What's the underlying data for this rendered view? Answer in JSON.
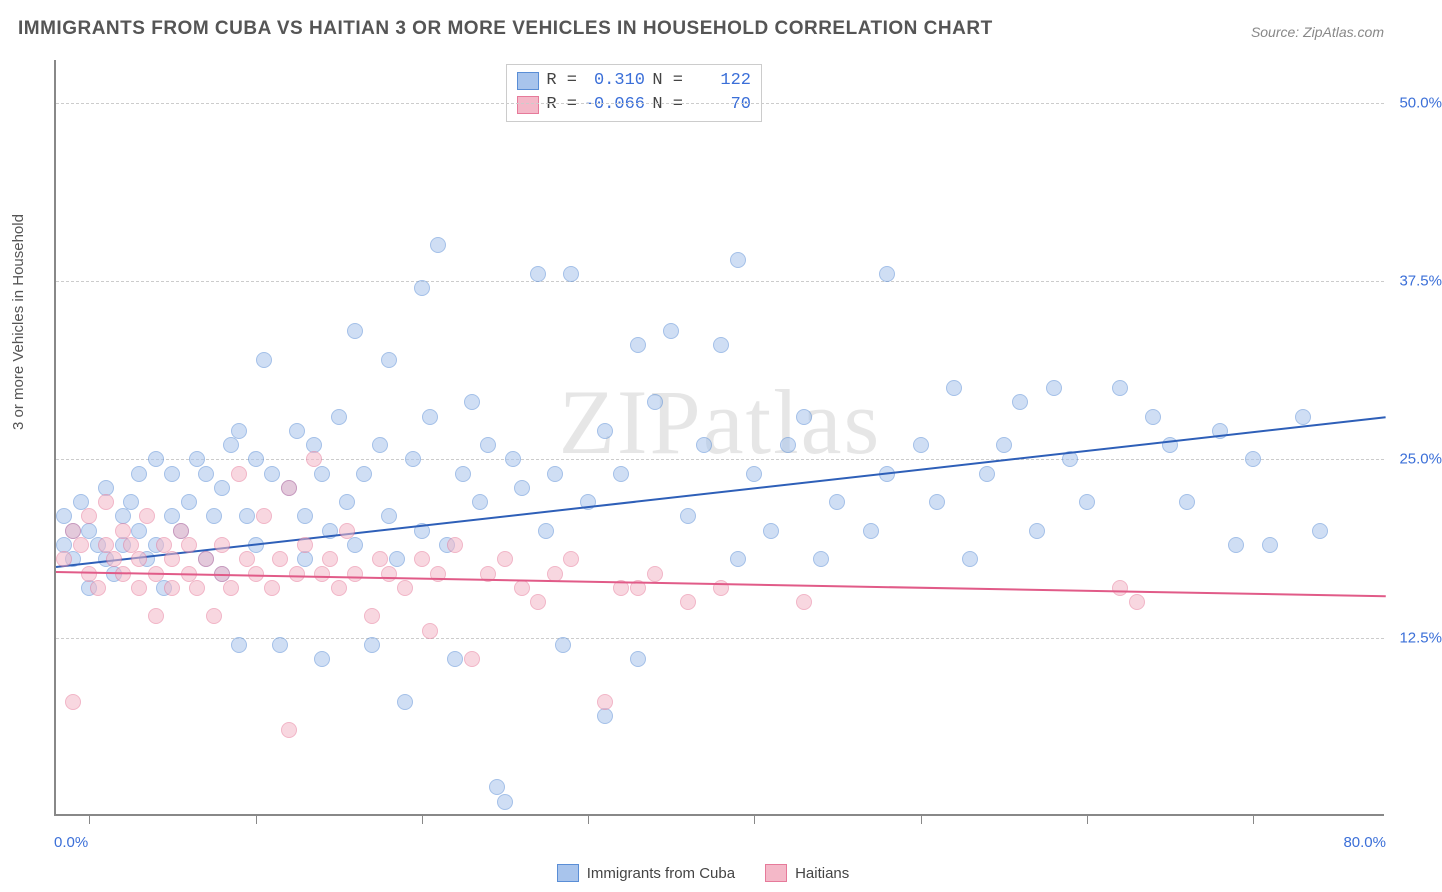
{
  "title": "IMMIGRANTS FROM CUBA VS HAITIAN 3 OR MORE VEHICLES IN HOUSEHOLD CORRELATION CHART",
  "source": "Source: ZipAtlas.com",
  "watermark": "ZIPatlas",
  "chart": {
    "type": "scatter",
    "xlim": [
      0,
      80
    ],
    "ylim": [
      0,
      53
    ],
    "xlabel_min": "0.0%",
    "xlabel_max": "80.0%",
    "ylabel": "3 or more Vehicles in Household",
    "yticks": [
      {
        "v": 12.5,
        "label": "12.5%"
      },
      {
        "v": 25.0,
        "label": "25.0%"
      },
      {
        "v": 37.5,
        "label": "37.5%"
      },
      {
        "v": 50.0,
        "label": "50.0%"
      }
    ],
    "xtick_positions": [
      2,
      12,
      22,
      32,
      42,
      52,
      62,
      72
    ],
    "background_color": "#ffffff",
    "grid_color": "#cccccc",
    "axis_color": "#888888",
    "point_radius": 8,
    "point_opacity": 0.55,
    "series": [
      {
        "name": "Immigrants from Cuba",
        "fill": "#a8c4ec",
        "stroke": "#5a8ed6",
        "line_color": "#2e5fb8",
        "R": "0.310",
        "N": "122",
        "trend": {
          "x1": 0,
          "y1": 17.5,
          "x2": 80,
          "y2": 28.0
        },
        "points": [
          [
            0.5,
            19
          ],
          [
            0.5,
            21
          ],
          [
            1,
            20
          ],
          [
            1,
            18
          ],
          [
            1.5,
            22
          ],
          [
            2,
            16
          ],
          [
            2,
            20
          ],
          [
            2.5,
            19
          ],
          [
            3,
            18
          ],
          [
            3,
            23
          ],
          [
            3.5,
            17
          ],
          [
            4,
            21
          ],
          [
            4,
            19
          ],
          [
            4.5,
            22
          ],
          [
            5,
            20
          ],
          [
            5,
            24
          ],
          [
            5.5,
            18
          ],
          [
            6,
            25
          ],
          [
            6,
            19
          ],
          [
            6.5,
            16
          ],
          [
            7,
            24
          ],
          [
            7,
            21
          ],
          [
            7.5,
            20
          ],
          [
            8,
            22
          ],
          [
            8.5,
            25
          ],
          [
            9,
            18
          ],
          [
            9,
            24
          ],
          [
            9.5,
            21
          ],
          [
            10,
            17
          ],
          [
            10,
            23
          ],
          [
            10.5,
            26
          ],
          [
            11,
            12
          ],
          [
            11,
            27
          ],
          [
            11.5,
            21
          ],
          [
            12,
            25
          ],
          [
            12,
            19
          ],
          [
            12.5,
            32
          ],
          [
            13,
            24
          ],
          [
            13.5,
            12
          ],
          [
            14,
            23
          ],
          [
            14.5,
            27
          ],
          [
            15,
            21
          ],
          [
            15,
            18
          ],
          [
            15.5,
            26
          ],
          [
            16,
            11
          ],
          [
            16,
            24
          ],
          [
            16.5,
            20
          ],
          [
            17,
            28
          ],
          [
            17.5,
            22
          ],
          [
            18,
            34
          ],
          [
            18,
            19
          ],
          [
            18.5,
            24
          ],
          [
            19,
            12
          ],
          [
            19.5,
            26
          ],
          [
            20,
            32
          ],
          [
            20,
            21
          ],
          [
            20.5,
            18
          ],
          [
            21,
            8
          ],
          [
            21.5,
            25
          ],
          [
            22,
            37
          ],
          [
            22,
            20
          ],
          [
            22.5,
            28
          ],
          [
            23,
            40
          ],
          [
            23.5,
            19
          ],
          [
            24,
            11
          ],
          [
            24.5,
            24
          ],
          [
            25,
            29
          ],
          [
            25.5,
            22
          ],
          [
            26,
            26
          ],
          [
            26.5,
            2
          ],
          [
            27,
            1
          ],
          [
            27.5,
            25
          ],
          [
            28,
            23
          ],
          [
            29,
            38
          ],
          [
            29.5,
            20
          ],
          [
            30,
            24
          ],
          [
            30.5,
            12
          ],
          [
            31,
            38
          ],
          [
            32,
            22
          ],
          [
            33,
            27
          ],
          [
            33,
            7
          ],
          [
            34,
            24
          ],
          [
            35,
            33
          ],
          [
            35,
            11
          ],
          [
            36,
            29
          ],
          [
            37,
            34
          ],
          [
            38,
            21
          ],
          [
            39,
            26
          ],
          [
            40,
            33
          ],
          [
            41,
            39
          ],
          [
            41,
            18
          ],
          [
            42,
            24
          ],
          [
            43,
            20
          ],
          [
            44,
            26
          ],
          [
            45,
            28
          ],
          [
            46,
            18
          ],
          [
            47,
            22
          ],
          [
            49,
            20
          ],
          [
            50,
            24
          ],
          [
            50,
            38
          ],
          [
            52,
            26
          ],
          [
            53,
            22
          ],
          [
            54,
            30
          ],
          [
            55,
            18
          ],
          [
            56,
            24
          ],
          [
            57,
            26
          ],
          [
            58,
            29
          ],
          [
            59,
            20
          ],
          [
            60,
            30
          ],
          [
            61,
            25
          ],
          [
            62,
            22
          ],
          [
            64,
            30
          ],
          [
            66,
            28
          ],
          [
            67,
            26
          ],
          [
            68,
            22
          ],
          [
            70,
            27
          ],
          [
            71,
            19
          ],
          [
            72,
            25
          ],
          [
            73,
            19
          ],
          [
            75,
            28
          ],
          [
            76,
            20
          ]
        ]
      },
      {
        "name": "Haitians",
        "fill": "#f4b8c8",
        "stroke": "#e67a9a",
        "line_color": "#e15b88",
        "R": "-0.066",
        "N": "70",
        "trend": {
          "x1": 0,
          "y1": 17.2,
          "x2": 80,
          "y2": 15.5
        },
        "points": [
          [
            0.5,
            18
          ],
          [
            1,
            20
          ],
          [
            1,
            8
          ],
          [
            1.5,
            19
          ],
          [
            2,
            17
          ],
          [
            2,
            21
          ],
          [
            2.5,
            16
          ],
          [
            3,
            19
          ],
          [
            3,
            22
          ],
          [
            3.5,
            18
          ],
          [
            4,
            17
          ],
          [
            4,
            20
          ],
          [
            4.5,
            19
          ],
          [
            5,
            16
          ],
          [
            5,
            18
          ],
          [
            5.5,
            21
          ],
          [
            6,
            17
          ],
          [
            6,
            14
          ],
          [
            6.5,
            19
          ],
          [
            7,
            16
          ],
          [
            7,
            18
          ],
          [
            7.5,
            20
          ],
          [
            8,
            17
          ],
          [
            8,
            19
          ],
          [
            8.5,
            16
          ],
          [
            9,
            18
          ],
          [
            9.5,
            14
          ],
          [
            10,
            17
          ],
          [
            10,
            19
          ],
          [
            10.5,
            16
          ],
          [
            11,
            24
          ],
          [
            11.5,
            18
          ],
          [
            12,
            17
          ],
          [
            12.5,
            21
          ],
          [
            13,
            16
          ],
          [
            13.5,
            18
          ],
          [
            14,
            23
          ],
          [
            14,
            6
          ],
          [
            14.5,
            17
          ],
          [
            15,
            19
          ],
          [
            15.5,
            25
          ],
          [
            16,
            17
          ],
          [
            16.5,
            18
          ],
          [
            17,
            16
          ],
          [
            17.5,
            20
          ],
          [
            18,
            17
          ],
          [
            19,
            14
          ],
          [
            19.5,
            18
          ],
          [
            20,
            17
          ],
          [
            21,
            16
          ],
          [
            22,
            18
          ],
          [
            22.5,
            13
          ],
          [
            23,
            17
          ],
          [
            24,
            19
          ],
          [
            25,
            11
          ],
          [
            26,
            17
          ],
          [
            27,
            18
          ],
          [
            28,
            16
          ],
          [
            29,
            15
          ],
          [
            30,
            17
          ],
          [
            31,
            18
          ],
          [
            33,
            8
          ],
          [
            34,
            16
          ],
          [
            35,
            16
          ],
          [
            36,
            17
          ],
          [
            38,
            15
          ],
          [
            40,
            16
          ],
          [
            45,
            15
          ],
          [
            64,
            16
          ],
          [
            65,
            15
          ]
        ]
      }
    ]
  },
  "legend_top": {
    "R_label": "R =",
    "N_label": "N ="
  },
  "legend_bottom": [
    {
      "label": "Immigrants from Cuba",
      "series": 0
    },
    {
      "label": "Haitians",
      "series": 1
    }
  ]
}
